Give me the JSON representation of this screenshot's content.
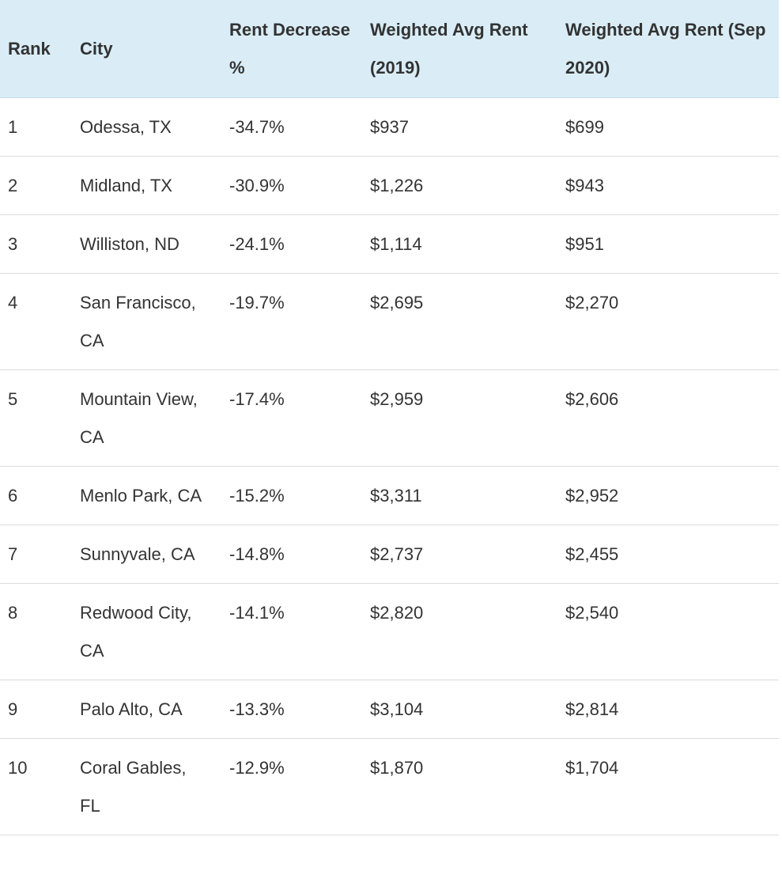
{
  "table": {
    "header": [
      "Rank",
      "City",
      "Rent Decrease %",
      "Weighted Avg Rent (2019)",
      "Weighted Avg Rent (Sep 2020)"
    ],
    "rows": [
      [
        "1",
        "Odessa, TX",
        "-34.7%",
        "$937",
        "$699"
      ],
      [
        "2",
        "Midland, TX",
        "-30.9%",
        "$1,226",
        "$943"
      ],
      [
        "3",
        "Williston, ND",
        "-24.1%",
        "$1,114",
        "$951"
      ],
      [
        "4",
        "San Francisco, CA",
        "-19.7%",
        "$2,695",
        "$2,270"
      ],
      [
        "5",
        "Mountain View, CA",
        "-17.4%",
        "$2,959",
        "$2,606"
      ],
      [
        "6",
        "Menlo Park, CA",
        "-15.2%",
        "$3,311",
        "$2,952"
      ],
      [
        "7",
        "Sunnyvale, CA",
        "-14.8%",
        "$2,737",
        "$2,455"
      ],
      [
        "8",
        "Redwood City, CA",
        "-14.1%",
        "$2,820",
        "$2,540"
      ],
      [
        "9",
        "Palo Alto, CA",
        "-13.3%",
        "$3,104",
        "$2,814"
      ],
      [
        "10",
        "Coral Gables, FL",
        "-12.9%",
        "$1,870",
        "$1,704"
      ]
    ]
  }
}
